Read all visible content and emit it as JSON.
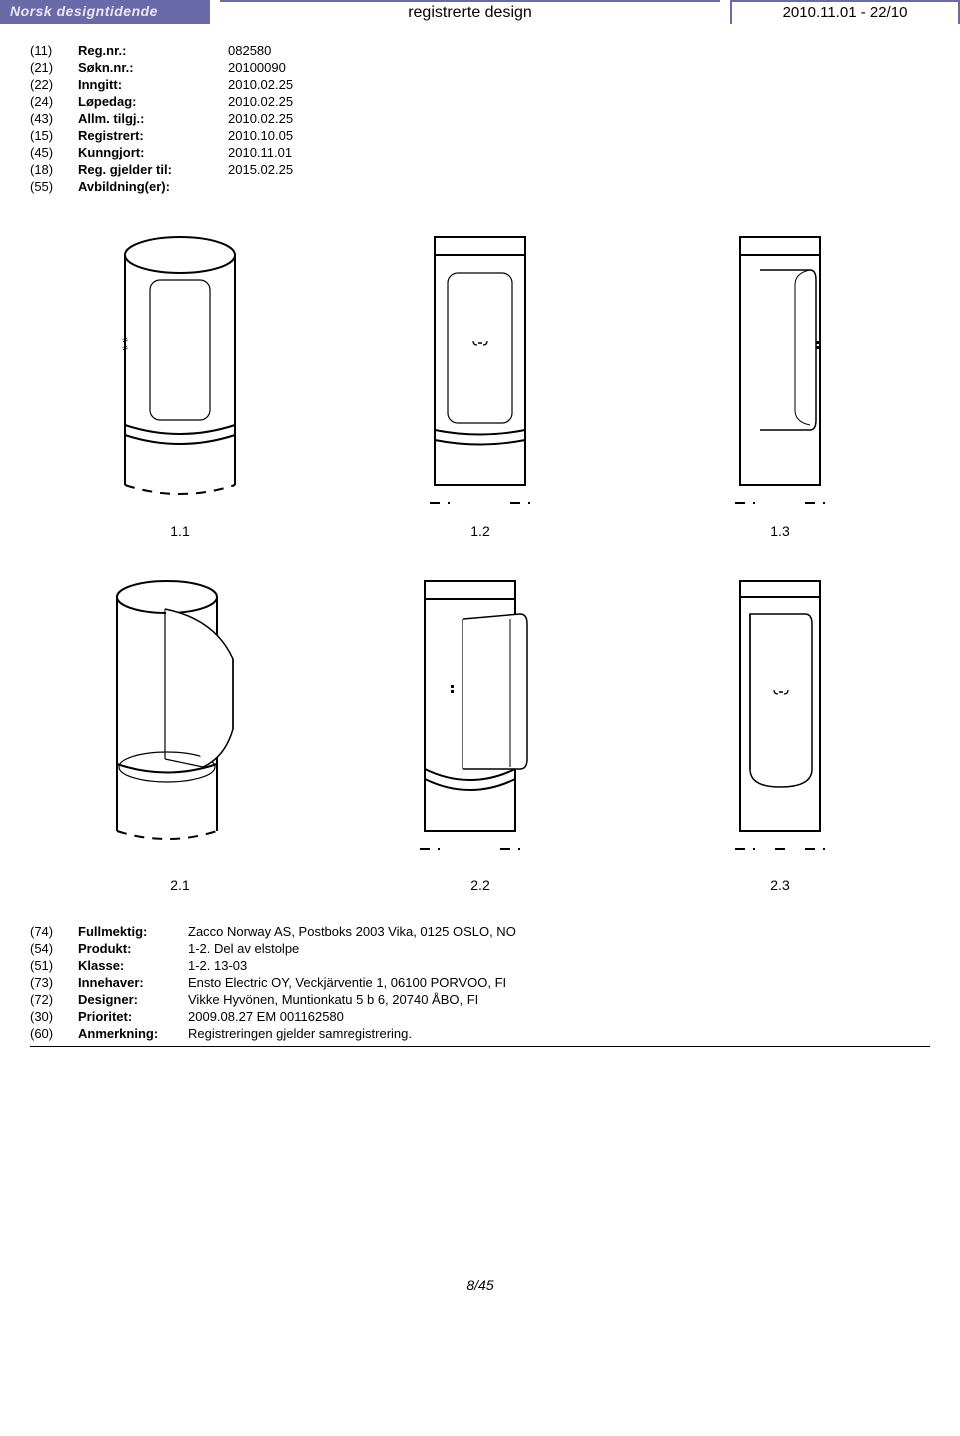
{
  "header": {
    "brand": "Norsk designtidende",
    "title": "registrerte design",
    "issue": "2010.11.01 - 22/10"
  },
  "meta": [
    {
      "code": "(11)",
      "label": "Reg.nr.:",
      "value": "082580"
    },
    {
      "code": "(21)",
      "label": "Søkn.nr.:",
      "value": "20100090"
    },
    {
      "code": "(22)",
      "label": "Inngitt:",
      "value": "2010.02.25"
    },
    {
      "code": "(24)",
      "label": "Løpedag:",
      "value": "2010.02.25"
    },
    {
      "code": "(43)",
      "label": "Allm. tilgj.:",
      "value": "2010.02.25"
    },
    {
      "code": "(15)",
      "label": "Registrert:",
      "value": "2010.10.05"
    },
    {
      "code": "(45)",
      "label": "Kunngjort:",
      "value": "2010.11.01"
    },
    {
      "code": "(18)",
      "label": "Reg. gjelder til:",
      "value": "2015.02.25"
    },
    {
      "code": "(55)",
      "label": "Avbildning(er):",
      "value": ""
    }
  ],
  "drawings_row1": [
    "1.1",
    "1.2",
    "1.3"
  ],
  "drawings_row2": [
    "2.1",
    "2.2",
    "2.3"
  ],
  "details": [
    {
      "code": "(74)",
      "label": "Fullmektig:",
      "value": "Zacco Norway AS, Postboks 2003 Vika, 0125 OSLO, NO"
    },
    {
      "code": "(54)",
      "label": "Produkt:",
      "value": "1-2. Del av elstolpe"
    },
    {
      "code": "(51)",
      "label": "Klasse:",
      "value": "1-2. 13-03"
    },
    {
      "code": "(73)",
      "label": "Innehaver:",
      "value": "Ensto Electric OY, Veckjärventie 1, 06100 PORVOO, FI"
    },
    {
      "code": "(72)",
      "label": "Designer:",
      "value": "Vikke Hyvönen, Muntionkatu 5 b 6, 20740 ÅBO, FI"
    },
    {
      "code": "(30)",
      "label": "Prioritet:",
      "value": "2009.08.27 EM 001162580"
    },
    {
      "code": "(60)",
      "label": "Anmerkning:",
      "value": "Registreringen gjelder samregistrering."
    }
  ],
  "footer": "8/45",
  "colors": {
    "header_bg": "#6a6aa8",
    "header_text": "#e8e8f4"
  }
}
